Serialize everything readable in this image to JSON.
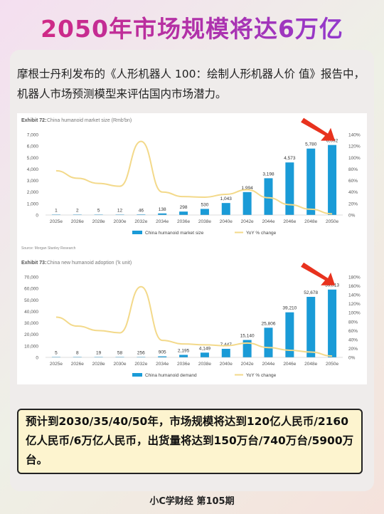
{
  "page": {
    "title": "2050年市场规模将达6万亿",
    "intro": "摩根士丹利发布的《人形机器人 100：绘制人形机器人价 值》报告中，机器人市场预测模型来评估国内市场潜力。",
    "summary": "预计到2030/35/40/50年，市场规模将达到120亿人民币/2160亿人民币/6万亿人民币，出货量将达到150万台/740万台/5900万台。",
    "footer": "小C学财经  第105期",
    "source": "Source: Morgan Stanley Research"
  },
  "colors": {
    "bar": "#1a9bd7",
    "line": "#f3d98a",
    "arrow": "#e8321e"
  },
  "chart_data": [
    {
      "type": "bar",
      "exhibit": "Exhibit 72:",
      "title": "China humanoid market size (Rmb'bn)",
      "categories": [
        "2025e",
        "2026e",
        "2028e",
        "2030e",
        "2032e",
        "2034e",
        "2036e",
        "2038e",
        "2040e",
        "2042e",
        "2044e",
        "2046e",
        "2048e",
        "2050e"
      ],
      "series": [
        {
          "name": "China humanoid market size",
          "axis": "left",
          "values": [
            1,
            2,
            5,
            12,
            46,
            138,
            298,
            530,
            1043,
            1994,
            3198,
            4573,
            5780,
            6092
          ],
          "labels": [
            "1",
            "2",
            "5",
            "12",
            "46",
            "138",
            "298",
            "530",
            "1,043",
            "1,994",
            "3,198",
            "4,573",
            "5,780",
            "6,092"
          ]
        },
        {
          "name": "YoY % change",
          "axis": "right",
          "values": [
            77,
            64,
            55,
            50,
            128,
            40,
            32,
            31,
            36,
            44,
            30,
            18,
            10,
            2
          ]
        }
      ],
      "ylim": [
        0,
        7000
      ],
      "yticks": [
        "0",
        "1,000",
        "2,000",
        "3,000",
        "4,000",
        "5,000",
        "6,000",
        "7,000"
      ],
      "y2lim": [
        0,
        140
      ],
      "y2ticks": [
        "0%",
        "20%",
        "40%",
        "60%",
        "80%",
        "100%",
        "120%",
        "140%"
      ],
      "legend": "bottom"
    },
    {
      "type": "bar",
      "exhibit": "Exhibit 73:",
      "title": "China new humanoid adoption ('k unit)",
      "categories": [
        "2025e",
        "2026e",
        "2028e",
        "2030e",
        "2032e",
        "2034e",
        "2036e",
        "2038e",
        "2040e",
        "2042e",
        "2044e",
        "2046e",
        "2048e",
        "2050e"
      ],
      "series": [
        {
          "name": "China humanoid demand",
          "axis": "left",
          "values": [
            5,
            8,
            19,
            58,
            256,
            905,
            2195,
            4149,
            7447,
            15140,
            25806,
            39210,
            52678,
            59013
          ],
          "labels": [
            "5",
            "8",
            "19",
            "58",
            "256",
            "905",
            "2,195",
            "4,149",
            "7,447",
            "15,140",
            "25,806",
            "39,210",
            "52,678",
            "59,013"
          ]
        },
        {
          "name": "YoY % change",
          "axis": "right",
          "values": [
            90,
            70,
            60,
            55,
            158,
            38,
            30,
            28,
            26,
            32,
            22,
            16,
            12,
            3
          ]
        }
      ],
      "ylim": [
        0,
        70000
      ],
      "yticks": [
        "0",
        "10,000",
        "20,000",
        "30,000",
        "40,000",
        "50,000",
        "60,000",
        "70,000"
      ],
      "y2lim": [
        0,
        180
      ],
      "y2ticks": [
        "0%",
        "20%",
        "40%",
        "60%",
        "80%",
        "100%",
        "120%",
        "140%",
        "160%",
        "180%"
      ],
      "legend": "bottom"
    }
  ]
}
